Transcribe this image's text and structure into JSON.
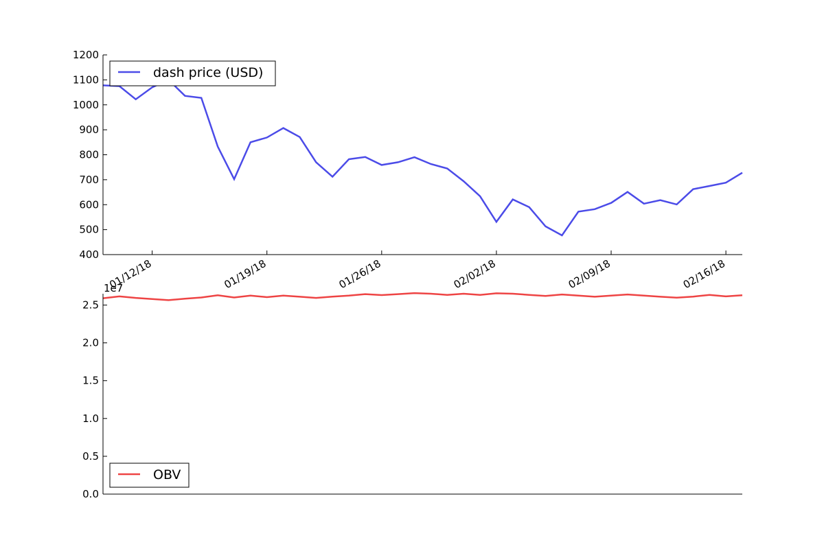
{
  "chart_data": [
    {
      "type": "line",
      "x": [
        "01/09/18",
        "01/10/18",
        "01/11/18",
        "01/12/18",
        "01/13/18",
        "01/14/18",
        "01/15/18",
        "01/16/18",
        "01/17/18",
        "01/18/18",
        "01/19/18",
        "01/20/18",
        "01/21/18",
        "01/22/18",
        "01/23/18",
        "01/24/18",
        "01/25/18",
        "01/26/18",
        "01/27/18",
        "01/28/18",
        "01/29/18",
        "01/30/18",
        "01/31/18",
        "02/01/18",
        "02/02/18",
        "02/03/18",
        "02/04/18",
        "02/05/18",
        "02/06/18",
        "02/07/18",
        "02/08/18",
        "02/09/18",
        "02/10/18",
        "02/11/18",
        "02/12/18",
        "02/13/18",
        "02/14/18",
        "02/15/18",
        "02/16/18",
        "02/17/18"
      ],
      "series": [
        {
          "name": "dash price (USD)",
          "color": "#4b4be8",
          "values": [
            1078,
            1075,
            1022,
            1070,
            1100,
            1036,
            1028,
            833,
            702,
            850,
            869,
            907,
            871,
            770,
            712,
            782,
            791,
            759,
            770,
            790,
            763,
            745,
            694,
            634,
            531,
            621,
            590,
            513,
            477,
            572,
            582,
            607,
            651,
            604,
            618,
            601,
            662,
            675,
            688,
            728
          ]
        }
      ],
      "ylim": [
        400,
        1200
      ],
      "yticks": [
        "400",
        "500",
        "600",
        "700",
        "800",
        "900",
        "1000",
        "1100",
        "1200"
      ],
      "xticks": [
        "01/12/18",
        "01/19/18",
        "01/26/18",
        "02/02/18",
        "02/09/18",
        "02/16/18"
      ],
      "legend": "upper left"
    },
    {
      "type": "line",
      "x": [
        "01/09/18",
        "01/10/18",
        "01/11/18",
        "01/12/18",
        "01/13/18",
        "01/14/18",
        "01/15/18",
        "01/16/18",
        "01/17/18",
        "01/18/18",
        "01/19/18",
        "01/20/18",
        "01/21/18",
        "01/22/18",
        "01/23/18",
        "01/24/18",
        "01/25/18",
        "01/26/18",
        "01/27/18",
        "01/28/18",
        "01/29/18",
        "01/30/18",
        "01/31/18",
        "02/01/18",
        "02/02/18",
        "02/03/18",
        "02/04/18",
        "02/05/18",
        "02/06/18",
        "02/07/18",
        "02/08/18",
        "02/09/18",
        "02/10/18",
        "02/11/18",
        "02/12/18",
        "02/13/18",
        "02/14/18",
        "02/15/18",
        "02/16/18",
        "02/17/18"
      ],
      "series": [
        {
          "name": "OBV",
          "color": "#ee4444",
          "values": [
            2.59,
            2.615,
            2.595,
            2.58,
            2.565,
            2.585,
            2.6,
            2.63,
            2.6,
            2.625,
            2.605,
            2.625,
            2.61,
            2.595,
            2.612,
            2.625,
            2.645,
            2.632,
            2.645,
            2.658,
            2.65,
            2.635,
            2.65,
            2.635,
            2.655,
            2.65,
            2.635,
            2.62,
            2.64,
            2.625,
            2.61,
            2.625,
            2.64,
            2.625,
            2.61,
            2.598,
            2.612,
            2.635,
            2.615,
            2.63
          ]
        }
      ],
      "scale_label": "1e7",
      "ylim": [
        0,
        2.65
      ],
      "yticks": [
        "0.0",
        "0.5",
        "1.0",
        "1.5",
        "2.0",
        "2.5"
      ],
      "legend": "lower left"
    }
  ]
}
